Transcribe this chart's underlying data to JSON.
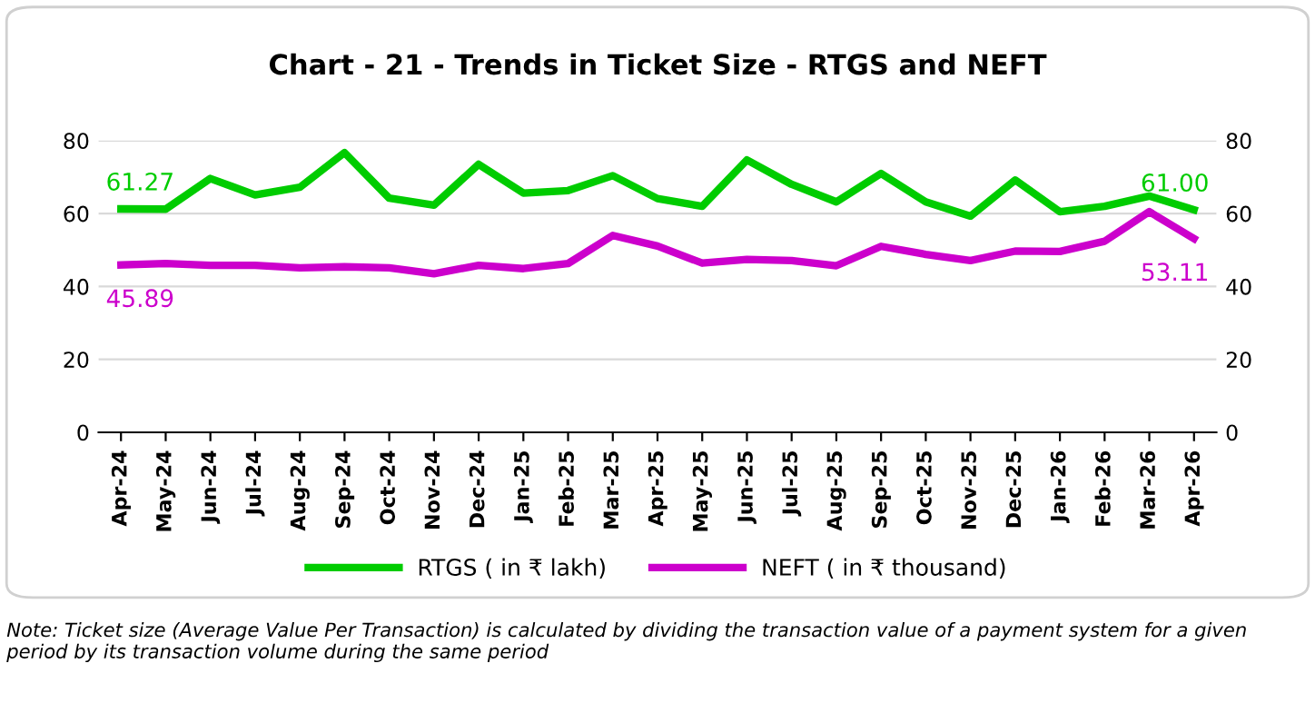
{
  "chart_data": {
    "type": "line",
    "title": "Chart - 21 - Trends in Ticket Size - RTGS and NEFT",
    "categories": [
      "Apr-24",
      "May-24",
      "Jun-24",
      "Jul-24",
      "Aug-24",
      "Sep-24",
      "Oct-24",
      "Nov-24",
      "Dec-24",
      "Jan-25",
      "Feb-25",
      "Mar-25",
      "Apr-25",
      "May-25",
      "Jun-25",
      "Jul-25",
      "Aug-25",
      "Sep-25",
      "Oct-25",
      "Nov-25",
      "Dec-25",
      "Jan-26",
      "Feb-26",
      "Mar-26",
      "Apr-26"
    ],
    "series": [
      {
        "name": "RTGS ( in ₹ lakh)",
        "color": "#00cc00",
        "values": [
          61.27,
          61.2,
          69.6,
          65.1,
          67.2,
          76.7,
          64.2,
          62.3,
          73.5,
          65.6,
          66.3,
          70.4,
          64.1,
          62,
          74.7,
          68,
          63.2,
          71,
          63.2,
          59.3,
          69.2,
          60.5,
          62,
          64.8,
          61.0
        ],
        "value_labels": [
          "61.27",
          null,
          null,
          null,
          null,
          null,
          null,
          null,
          null,
          null,
          null,
          null,
          null,
          null,
          null,
          null,
          null,
          null,
          null,
          null,
          null,
          null,
          null,
          null,
          "61.00"
        ]
      },
      {
        "name": "NEFT ( in ₹ thousand)",
        "color": "#cc00cc",
        "values": [
          45.89,
          46.3,
          45.8,
          45.8,
          45.1,
          45.4,
          45.1,
          43.5,
          45.8,
          44.9,
          46.3,
          54,
          51.1,
          46.4,
          47.4,
          47.1,
          45.7,
          51,
          48.8,
          47.1,
          49.7,
          49.6,
          52.4,
          60.5,
          53.11
        ],
        "value_labels": [
          "45.89",
          null,
          null,
          null,
          null,
          null,
          null,
          null,
          null,
          null,
          null,
          null,
          null,
          null,
          null,
          null,
          null,
          null,
          null,
          null,
          null,
          null,
          null,
          null,
          "53.11"
        ]
      }
    ],
    "ylim": [
      0,
      80
    ],
    "yticks": [
      0,
      20,
      40,
      60,
      80
    ],
    "y2lim": [
      0,
      80
    ],
    "y2ticks": [
      0,
      20,
      40,
      60,
      80
    ],
    "grid": "y",
    "legend": "bottom",
    "marker": "none",
    "line_style": "solid",
    "annotations": [
      "Note: Ticket size (Average Value Per Transaction) is calculated by dividing the transaction value of a payment system for a given period by its transaction volume during the same period"
    ]
  }
}
